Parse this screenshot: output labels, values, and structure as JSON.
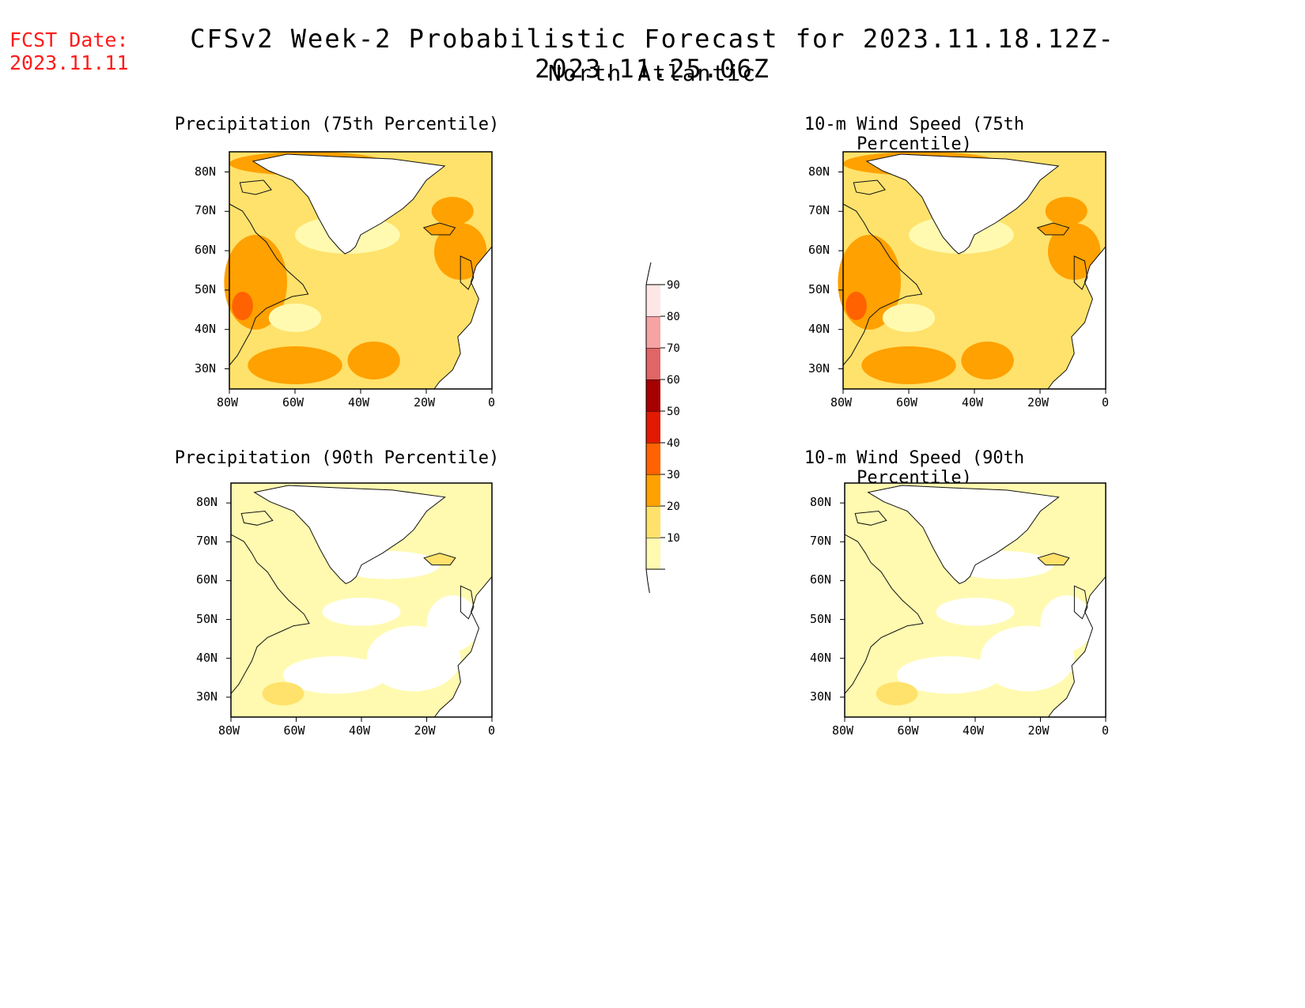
{
  "header": {
    "fcst_label": "FCST Date:",
    "fcst_date": "2023.11.11",
    "title": "CFSv2 Week-2 Probabilistic Forecast for 2023.11.18.12Z-2023.11.25.06Z",
    "subtitle": "North Atlantic"
  },
  "panels": [
    {
      "id": "precip75",
      "title": "Precipitation (75th Percentile)",
      "intensity": 2
    },
    {
      "id": "wind75",
      "title": "10-m Wind Speed (75th Percentile)",
      "intensity": 2
    },
    {
      "id": "precip90",
      "title": "Precipitation (90th Percentile)",
      "intensity": 1
    },
    {
      "id": "wind90",
      "title": "10-m Wind Speed (90th Percentile)",
      "intensity": 1
    }
  ],
  "axes": {
    "lat_labels": [
      "80N",
      "70N",
      "60N",
      "50N",
      "40N",
      "30N"
    ],
    "lon_labels": [
      "80W",
      "60W",
      "40W",
      "20W",
      "0"
    ]
  },
  "colorbar": {
    "levels": [
      "10",
      "20",
      "30",
      "40",
      "50",
      "60",
      "70",
      "80",
      "90"
    ],
    "colors": [
      "#fffab0",
      "#ffe26b",
      "#ffa100",
      "#ff6200",
      "#e11900",
      "#a60000",
      "#e06565",
      "#f5a3a3",
      "#ffe6e6"
    ]
  }
}
